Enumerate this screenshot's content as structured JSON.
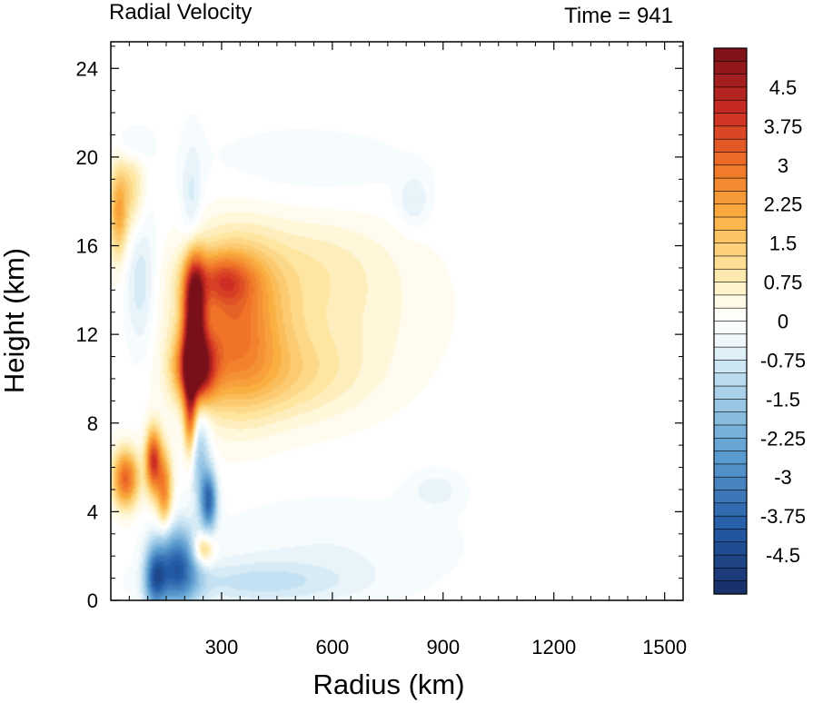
{
  "chart_data": {
    "type": "heatmap",
    "title": "Radial Velocity",
    "subtitle": "Time = 941",
    "xlabel": "Radius (km)",
    "ylabel": "Height (km)",
    "xlim": [
      0,
      1550
    ],
    "ylim": [
      0,
      25.2
    ],
    "x_ticks": [
      300,
      600,
      900,
      1200,
      1500
    ],
    "y_ticks": [
      0,
      4,
      8,
      12,
      16,
      20,
      24
    ],
    "grid": false,
    "legend": "colorbar-right",
    "colorbar": {
      "min": -5.25,
      "max": 5.25,
      "step": 0.25,
      "tick_labels": [
        "4.5",
        "3.75",
        "3",
        "2.25",
        "1.5",
        "0.75",
        "0",
        "-0.75",
        "-1.5",
        "-2.25",
        "-3",
        "-3.75",
        "-4.5"
      ],
      "tick_values": [
        4.5,
        3.75,
        3,
        2.25,
        1.5,
        0.75,
        0,
        -0.75,
        -1.5,
        -2.25,
        -3,
        -3.75,
        -4.5
      ]
    },
    "features": [
      {
        "x": 225,
        "y": 13.2,
        "sx": 20,
        "sy": 1.8,
        "value": 5.2
      },
      {
        "x": 230,
        "y": 10.5,
        "sx": 35,
        "sy": 1.0,
        "value": 4.6
      },
      {
        "x": 215,
        "y": 8.5,
        "sx": 12,
        "sy": 1.5,
        "value": 3.0
      },
      {
        "x": 330,
        "y": 12.5,
        "sx": 90,
        "sy": 2.5,
        "value": 2.4
      },
      {
        "x": 300,
        "y": 14.5,
        "sx": 60,
        "sy": 0.8,
        "value": 1.8
      },
      {
        "x": 520,
        "y": 13.0,
        "sx": 220,
        "sy": 2.4,
        "value": 0.7
      },
      {
        "x": 450,
        "y": 10.0,
        "sx": 160,
        "sy": 1.4,
        "value": 0.9
      },
      {
        "x": 550,
        "y": 15.5,
        "sx": 150,
        "sy": 1.5,
        "value": 0.4
      },
      {
        "x": 40,
        "y": 5.5,
        "sx": 25,
        "sy": 0.9,
        "value": 3.2
      },
      {
        "x": 115,
        "y": 6.3,
        "sx": 15,
        "sy": 1.0,
        "value": 3.8
      },
      {
        "x": 145,
        "y": 5.0,
        "sx": 15,
        "sy": 1.2,
        "value": 2.6
      },
      {
        "x": 20,
        "y": 17.5,
        "sx": 18,
        "sy": 1.5,
        "value": 2.0
      },
      {
        "x": 60,
        "y": 18.5,
        "sx": 25,
        "sy": 1.5,
        "value": 1.2
      },
      {
        "x": 250,
        "y": 2.3,
        "sx": 20,
        "sy": 0.5,
        "value": 2.0
      },
      {
        "x": 180,
        "y": 1.5,
        "sx": 40,
        "sy": 1.2,
        "value": -3.8
      },
      {
        "x": 120,
        "y": 1.0,
        "sx": 20,
        "sy": 1.0,
        "value": -3.0
      },
      {
        "x": 265,
        "y": 4.5,
        "sx": 15,
        "sy": 0.9,
        "value": -3.5
      },
      {
        "x": 240,
        "y": 6.5,
        "sx": 20,
        "sy": 1.5,
        "value": -1.6
      },
      {
        "x": 220,
        "y": 16.5,
        "sx": 20,
        "sy": 2.5,
        "value": -1.0
      },
      {
        "x": 80,
        "y": 14.5,
        "sx": 30,
        "sy": 2.5,
        "value": -0.9
      },
      {
        "x": 400,
        "y": 0.8,
        "sx": 180,
        "sy": 0.7,
        "value": -0.9
      },
      {
        "x": 600,
        "y": 2.5,
        "sx": 250,
        "sy": 1.5,
        "value": -0.35
      },
      {
        "x": 520,
        "y": 19.5,
        "sx": 250,
        "sy": 1.5,
        "value": -0.25
      },
      {
        "x": 820,
        "y": 18.0,
        "sx": 30,
        "sy": 0.8,
        "value": -0.6
      },
      {
        "x": 880,
        "y": 5.0,
        "sx": 50,
        "sy": 0.6,
        "value": -0.5
      },
      {
        "x": 60,
        "y": 20.6,
        "sx": 30,
        "sy": 0.6,
        "value": -0.7
      }
    ]
  }
}
